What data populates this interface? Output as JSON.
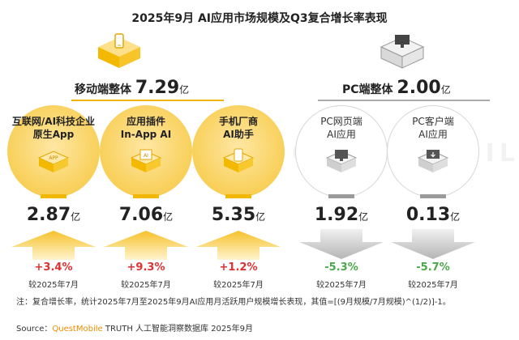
{
  "title": "2025年9月 AI应用市场规模及Q3复合增长率表现",
  "groups": [
    {
      "label": "移动端整体",
      "value": "7.29",
      "unit": "亿",
      "color": "#f2b707",
      "icon": "mobile-box-icon"
    },
    {
      "label": "PC端整体",
      "value": "2.00",
      "unit": "亿",
      "color": "#9a9a9a",
      "icon": "pc-box-icon"
    }
  ],
  "items": [
    {
      "line1": "互联网/AI科技企业",
      "line2": "原生App",
      "icon": "app-icon",
      "value": "2.87",
      "unit": "亿",
      "growth": "+3.4%",
      "compare": "较2025年7月",
      "direction": "up"
    },
    {
      "line1": "应用插件",
      "line2": "In-App AI",
      "icon": "ai-plugin-icon",
      "value": "7.06",
      "unit": "亿",
      "growth": "+9.3%",
      "compare": "较2025年7月",
      "direction": "up"
    },
    {
      "line1": "手机厂商",
      "line2": "AI助手",
      "icon": "phone-icon",
      "value": "5.35",
      "unit": "亿",
      "growth": "+1.2%",
      "compare": "较2025年7月",
      "direction": "up"
    },
    {
      "line1": "PC网页端",
      "line2": "AI应用",
      "icon": "monitor-icon",
      "value": "1.92",
      "unit": "亿",
      "growth": "-5.3%",
      "compare": "较2025年7月",
      "direction": "down"
    },
    {
      "line1": "PC客户端",
      "line2": "AI应用",
      "icon": "cloud-download-icon",
      "value": "0.13",
      "unit": "亿",
      "growth": "-5.7%",
      "compare": "较2025年7月",
      "direction": "down"
    }
  ],
  "note": "注：复合增长率，统计2025年7月至2025年9月AI应用月活跃用户规模增长表现，其值=[(9月规模/7月规模)^(1/2)]-1。",
  "source_prefix": "Source：",
  "source_brand": "QuestMobile",
  "source_rest": " TRUTH 人工智能洞察数据库 2025年9月",
  "watermark": "QUESTMOBILE",
  "chart_data": {
    "type": "table",
    "title": "2025年9月 AI应用市场规模及Q3复合增长率表现",
    "totals": [
      {
        "name": "移动端整体",
        "value": 7.29,
        "unit": "亿"
      },
      {
        "name": "PC端整体",
        "value": 2.0,
        "unit": "亿"
      }
    ],
    "categories": [
      "互联网/AI科技企业 原生App",
      "应用插件 In-App AI",
      "手机厂商 AI助手",
      "PC网页端 AI应用",
      "PC客户端 AI应用"
    ],
    "values": [
      2.87,
      7.06,
      5.35,
      1.92,
      0.13
    ],
    "growth_pct": [
      3.4,
      9.3,
      1.2,
      -5.3,
      -5.7
    ],
    "colors": {
      "mobile": "#f2b707",
      "pc": "#9a9a9a",
      "up": "#e03030",
      "down": "#4aa84a"
    }
  }
}
